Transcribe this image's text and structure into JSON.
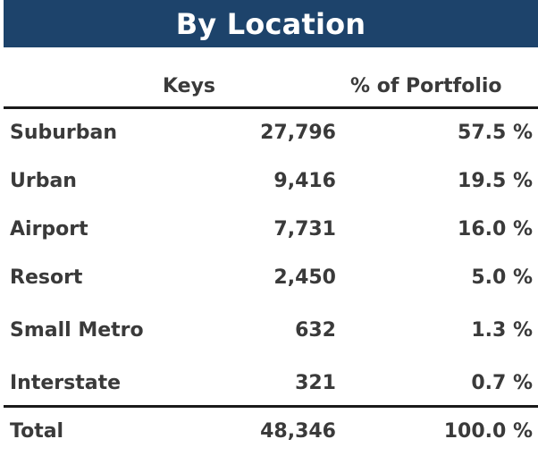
{
  "title": "By Location",
  "columns": {
    "keys": "Keys",
    "portfolio": "% of Portfolio"
  },
  "rows": [
    {
      "label": "Suburban",
      "keys": "27,796",
      "portfolio": "57.5 %"
    },
    {
      "label": "Urban",
      "keys": "9,416",
      "portfolio": "19.5 %"
    },
    {
      "label": "Airport",
      "keys": "7,731",
      "portfolio": "16.0 %"
    },
    {
      "label": "Resort",
      "keys": "2,450",
      "portfolio": "5.0 %"
    },
    {
      "label": "Small Metro",
      "keys": "632",
      "portfolio": "1.3 %"
    },
    {
      "label": "Interstate",
      "keys": "321",
      "portfolio": "0.7 %"
    }
  ],
  "total": {
    "label": "Total",
    "keys": "48,346",
    "portfolio": "100.0 %"
  },
  "colors": {
    "title_bg": "#1d436b",
    "title_text": "#ffffff",
    "body_text": "#3a3a3a",
    "rule": "#1a1a1a"
  }
}
